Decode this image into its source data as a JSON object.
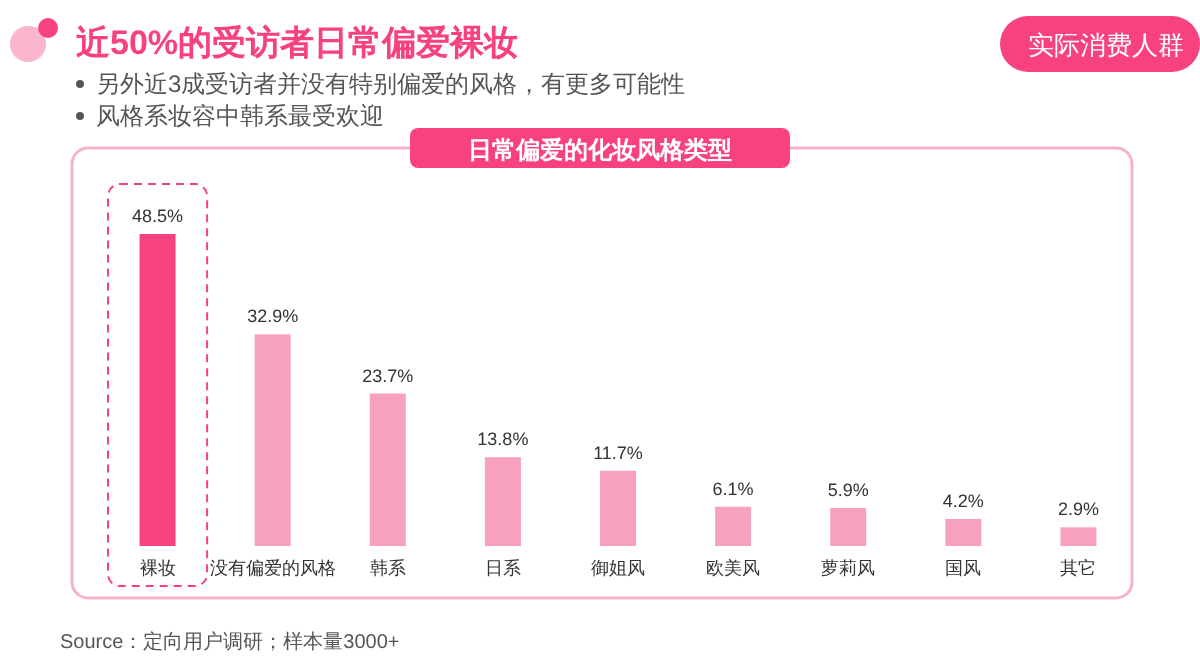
{
  "chart_data": {
    "type": "bar",
    "title": "近50%的受访者日常偏爱裸妆",
    "subtitle": "日常偏爱的化妆风格类型",
    "annotations": [
      "另外近3成受访者并没有特别偏爱的风格，有更多可能性",
      "风格系妆容中韩系最受欢迎",
      "实际消费人群",
      "Source：定向用户调研；样本量3000+"
    ],
    "categories": [
      "裸妆",
      "没有偏爱的风格",
      "韩系",
      "日系",
      "御姐风",
      "欧美风",
      "萝莉风",
      "国风",
      "其它"
    ],
    "values": [
      48.5,
      32.9,
      23.7,
      13.8,
      11.7,
      6.1,
      5.9,
      4.2,
      2.9
    ],
    "colors": [
      "#f8427f",
      "#f7a1be",
      "#f7a1be",
      "#f7a1be",
      "#f7a1be",
      "#f7a1be",
      "#f7a1be",
      "#f7a1be",
      "#f7a1be"
    ],
    "value_labels": [
      "48.5%",
      "32.9%",
      "23.7%",
      "13.8%",
      "11.7%",
      "6.1%",
      "5.9%",
      "4.2%",
      "2.9%"
    ]
  }
}
